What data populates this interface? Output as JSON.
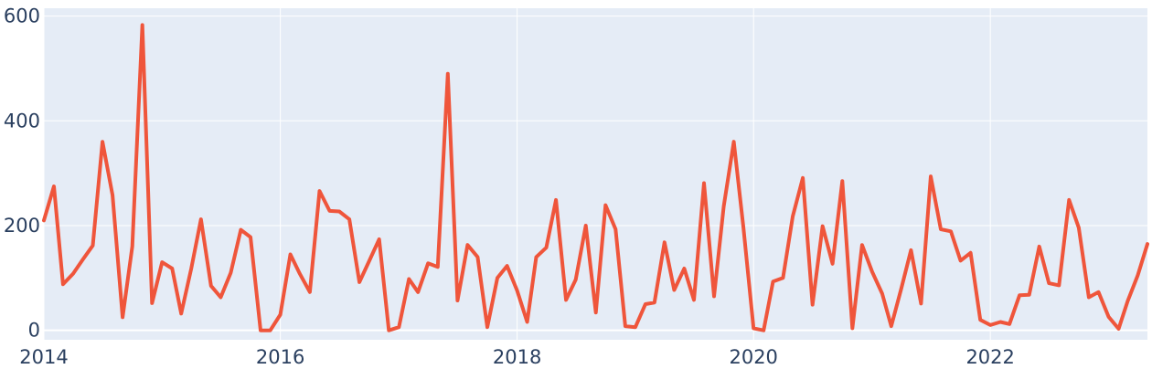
{
  "chart_data": {
    "type": "line",
    "title": "",
    "xlabel": "",
    "ylabel": "",
    "x_start": "2014-01",
    "x_step": "month",
    "xlim": [
      "2014-01-01",
      "2023-05-01"
    ],
    "ylim": [
      -18,
      615
    ],
    "x_ticks": [
      {
        "value": "2014-01-01",
        "label": "2014"
      },
      {
        "value": "2016-01-01",
        "label": "2016"
      },
      {
        "value": "2018-01-01",
        "label": "2018"
      },
      {
        "value": "2020-01-01",
        "label": "2020"
      },
      {
        "value": "2022-01-01",
        "label": "2022"
      }
    ],
    "y_ticks": [
      {
        "value": 0,
        "label": "0"
      },
      {
        "value": 200,
        "label": "200"
      },
      {
        "value": 400,
        "label": "400"
      },
      {
        "value": 600,
        "label": "600"
      }
    ],
    "grid": true,
    "colors": {
      "plot_bg": "#e5ecf6",
      "grid": "#ffffff",
      "line": "#ef553b",
      "tick_text": "#2a3f5f"
    },
    "series": [
      {
        "values": [
          210,
          275,
          88,
          108,
          135,
          162,
          360,
          258,
          25,
          160,
          583,
          52,
          130,
          118,
          32,
          118,
          212,
          85,
          63,
          110,
          192,
          178,
          0,
          0,
          30,
          145,
          108,
          73,
          266,
          228,
          227,
          212,
          92,
          132,
          174,
          0,
          6,
          98,
          73,
          128,
          121,
          490,
          57,
          163,
          140,
          6,
          100,
          123,
          76,
          16,
          140,
          158,
          249,
          58,
          97,
          200,
          34,
          239,
          193,
          8,
          6,
          50,
          53,
          168,
          77,
          118,
          58,
          281,
          65,
          237,
          360,
          195,
          4,
          0,
          93,
          100,
          218,
          291,
          49,
          199,
          127,
          285,
          4,
          163,
          112,
          70,
          8,
          80,
          153,
          51,
          294,
          193,
          189,
          133,
          148,
          20,
          10,
          16,
          12,
          67,
          68,
          160,
          90,
          86,
          249,
          196,
          63,
          73,
          26,
          3,
          56,
          105,
          165
        ]
      }
    ]
  }
}
